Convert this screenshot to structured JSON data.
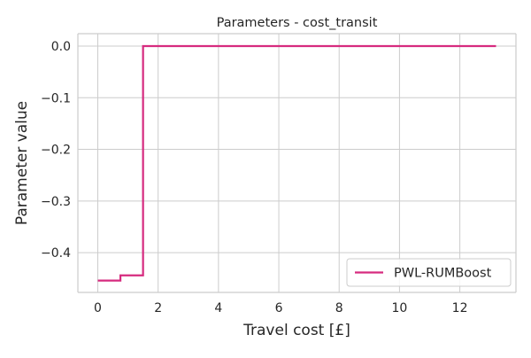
{
  "chart_data": {
    "type": "line",
    "title": "Parameters - cost_transit",
    "xlabel": "Travel cost [£]",
    "ylabel": "Parameter value",
    "xlim": [
      -0.66,
      13.86
    ],
    "ylim": [
      -0.477,
      0.024
    ],
    "grid": true,
    "legend_position": "lower right",
    "x_ticks": [
      0,
      2,
      4,
      6,
      8,
      10,
      12
    ],
    "x_tick_labels": [
      "0",
      "2",
      "4",
      "6",
      "8",
      "10",
      "12"
    ],
    "y_ticks": [
      0.0,
      -0.1,
      -0.2,
      -0.3,
      -0.4
    ],
    "y_tick_labels": [
      "0.0",
      "−0.1",
      "−0.2",
      "−0.3",
      "−0.4"
    ],
    "series": [
      {
        "name": "PWL-RUMBoost",
        "color": "#d62b7f",
        "style": "step",
        "x": [
          0,
          0.75,
          0.75,
          1.5,
          1.5,
          13.2
        ],
        "y": [
          -0.454,
          -0.454,
          -0.444,
          -0.444,
          0.0,
          0.0
        ]
      }
    ]
  }
}
